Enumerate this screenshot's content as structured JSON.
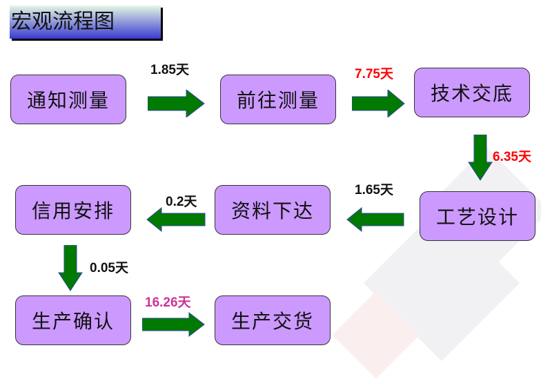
{
  "title": "宏观流程图",
  "steps": [
    "通知测量",
    "前往测量",
    "技术交底",
    "工艺设计",
    "资料下达",
    "信用安排",
    "生产确认",
    "生产交货"
  ],
  "durations": [
    {
      "text": "1.85天",
      "color": "#111111"
    },
    {
      "text": "7.75天",
      "color": "#ff0000"
    },
    {
      "text": "6.35天",
      "color": "#ff0000"
    },
    {
      "text": "1.65天",
      "color": "#111111"
    },
    {
      "text": "0.2天",
      "color": "#111111"
    },
    {
      "text": "0.05天",
      "color": "#111111"
    },
    {
      "text": "16.26天",
      "color": "#cc3399"
    }
  ],
  "colors": {
    "box": "#cc99ff",
    "arrow": "#007a00"
  }
}
